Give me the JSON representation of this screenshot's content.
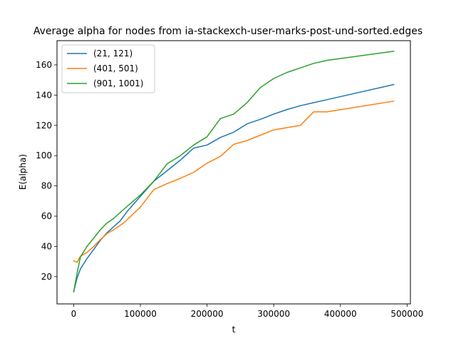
{
  "chart_data": {
    "type": "line",
    "title": "Average alpha for nodes from ia-stackexch-user-marks-post-und-sorted.edges",
    "xlabel": "t",
    "ylabel": "E(alpha)",
    "xlim": [
      -25000,
      505000
    ],
    "ylim": [
      2,
      176
    ],
    "xticks": [
      0,
      100000,
      200000,
      300000,
      400000,
      500000
    ],
    "yticks": [
      20,
      40,
      60,
      80,
      100,
      120,
      140,
      160
    ],
    "grid": false,
    "legend_position": "upper-left",
    "series": [
      {
        "name": "(21, 121)",
        "color": "#1f77b4",
        "x": [
          0,
          5000,
          10000,
          20000,
          30000,
          40000,
          50000,
          60000,
          70000,
          80000,
          100000,
          120000,
          140000,
          160000,
          180000,
          200000,
          220000,
          240000,
          260000,
          280000,
          300000,
          320000,
          340000,
          360000,
          380000,
          480000
        ],
        "y": [
          10,
          19,
          25,
          32,
          38,
          44,
          49,
          53,
          57,
          63,
          73,
          83,
          90,
          97,
          105,
          107,
          112,
          115.5,
          121,
          124,
          127.5,
          130.5,
          133,
          135,
          137,
          147
        ]
      },
      {
        "name": "(401, 501)",
        "color": "#ff7f0e",
        "x": [
          0,
          5000,
          10000,
          20000,
          30000,
          40000,
          50000,
          60000,
          75000,
          100000,
          120000,
          140000,
          160000,
          180000,
          200000,
          220000,
          240000,
          260000,
          280000,
          300000,
          320000,
          340000,
          360000,
          380000,
          480000
        ],
        "y": [
          30.5,
          29.5,
          33.5,
          36,
          40,
          44.5,
          48.5,
          51,
          55.5,
          66,
          77.5,
          81.5,
          85,
          89,
          95,
          99.5,
          107.5,
          110,
          113.5,
          117,
          118.5,
          120,
          129,
          129,
          136
        ]
      },
      {
        "name": "(901, 1001)",
        "color": "#2ca02c",
        "x": [
          0,
          5000,
          10000,
          20000,
          30000,
          40000,
          50000,
          60000,
          75000,
          100000,
          120000,
          140000,
          160000,
          180000,
          200000,
          220000,
          240000,
          260000,
          280000,
          300000,
          320000,
          340000,
          360000,
          380000,
          480000
        ],
        "y": [
          10,
          22,
          33,
          40,
          45.5,
          51,
          55.5,
          58.5,
          64.5,
          74,
          83,
          94.5,
          100,
          107,
          112.5,
          124.5,
          127.5,
          135,
          145,
          151,
          155,
          158,
          161,
          163,
          169
        ]
      }
    ]
  }
}
